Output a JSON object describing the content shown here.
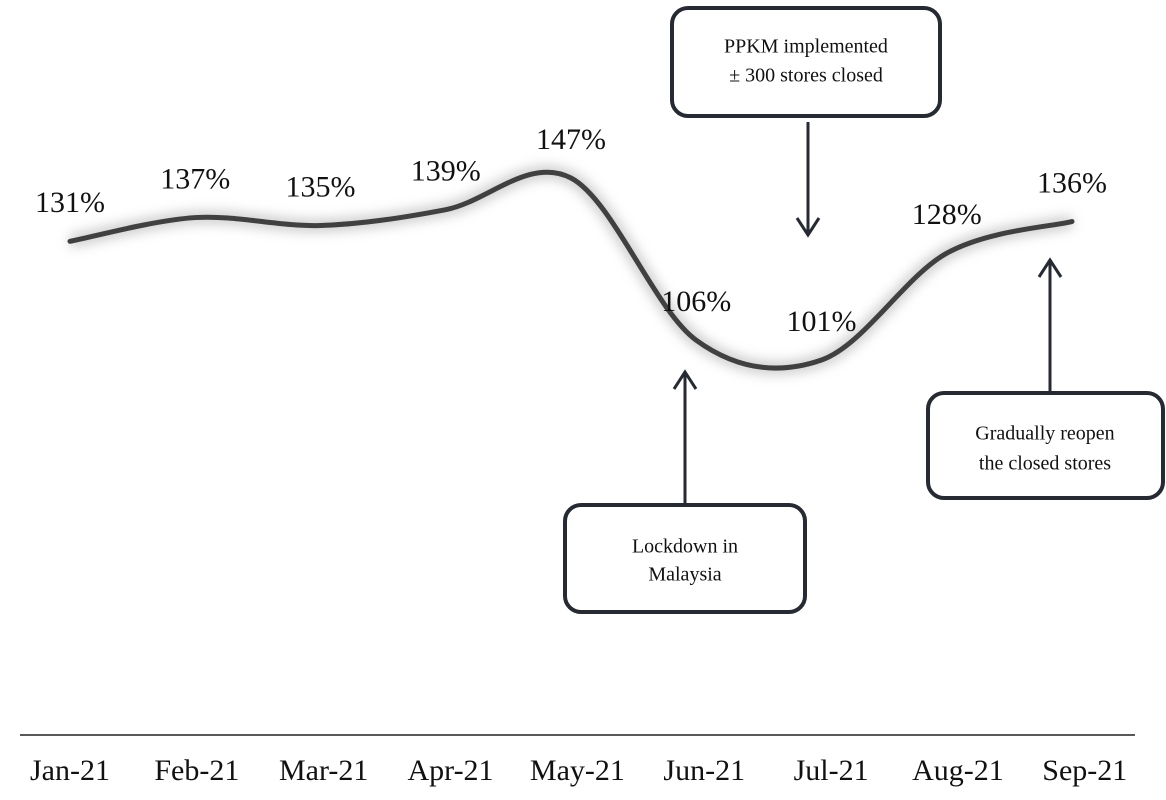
{
  "chart_data": {
    "type": "line",
    "categories": [
      "Jan-21",
      "Feb-21",
      "Mar-21",
      "Apr-21",
      "May-21",
      "Jun-21",
      "Jul-21",
      "Aug-21",
      "Sep-21"
    ],
    "values": [
      131,
      137,
      135,
      139,
      147,
      106,
      101,
      128,
      136
    ],
    "value_labels": [
      "131%",
      "137%",
      "135%",
      "139%",
      "147%",
      "106%",
      "101%",
      "128%",
      "136%"
    ],
    "color": "#404040",
    "annotations": [
      {
        "lines": [
          "PPKM implemented",
          "± 300 stores closed"
        ]
      },
      {
        "lines": [
          "Lockdown in",
          "Malaysia"
        ]
      },
      {
        "lines": [
          "Gradually reopen",
          "the closed stores"
        ]
      }
    ]
  }
}
